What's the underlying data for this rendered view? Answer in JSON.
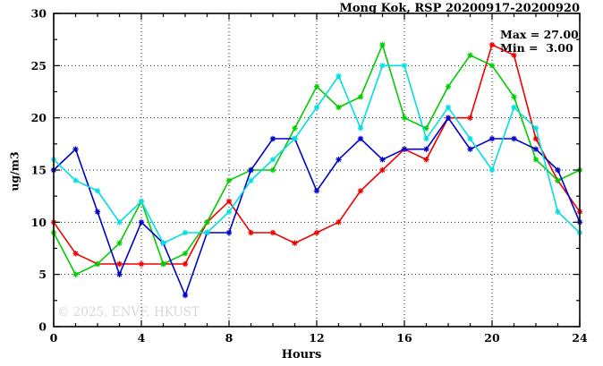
{
  "title": "Mong Kok, RSP 20200917-20200920",
  "annotation": {
    "max_label": "Max = 27.00",
    "min_label": "Min =  3.00"
  },
  "watermark": "© 2025, ENVF, HKUST",
  "chart_data": {
    "type": "line",
    "title": "Mong Kok, RSP 20200917-20200920",
    "xlabel": "Hours",
    "ylabel": "ug/m3",
    "xlim": [
      0,
      24
    ],
    "ylim": [
      0,
      30
    ],
    "x_major_ticks": [
      0,
      4,
      8,
      12,
      16,
      20,
      24
    ],
    "x_minor_step": 1,
    "y_major_ticks": [
      0,
      5,
      10,
      15,
      20,
      25,
      30
    ],
    "y_minor_step": 2.5,
    "grid": true,
    "legend_position": "none",
    "stat_max": 27.0,
    "stat_min": 3.0,
    "x": [
      0,
      1,
      2,
      3,
      4,
      5,
      6,
      7,
      8,
      9,
      10,
      11,
      12,
      13,
      14,
      15,
      16,
      17,
      18,
      19,
      20,
      21,
      22,
      23,
      24
    ],
    "series": [
      {
        "name": "day-1-red",
        "color": "#ee0000",
        "values": [
          10,
          7,
          6,
          6,
          6,
          6,
          6,
          10,
          12,
          9,
          9,
          8,
          9,
          10,
          13,
          15,
          17,
          16,
          20,
          20,
          27,
          26,
          18,
          14,
          11
        ]
      },
      {
        "name": "day-2-green",
        "color": "#00cc00",
        "values": [
          9,
          5,
          6,
          8,
          12,
          6,
          7,
          10,
          14,
          15,
          15,
          19,
          23,
          21,
          22,
          27,
          20,
          19,
          23,
          26,
          25,
          22,
          16,
          14,
          15
        ]
      },
      {
        "name": "day-3-blue",
        "color": "#0000cc",
        "values": [
          15,
          17,
          11,
          5,
          10,
          8,
          3,
          9,
          9,
          15,
          18,
          18,
          13,
          16,
          18,
          16,
          17,
          17,
          20,
          17,
          18,
          18,
          17,
          15,
          10
        ]
      },
      {
        "name": "day-4-cyan",
        "color": "#00dfdf",
        "values": [
          16,
          14,
          13,
          10,
          12,
          8,
          9,
          9,
          11,
          14,
          16,
          18,
          21,
          24,
          19,
          25,
          25,
          18,
          21,
          18,
          15,
          21,
          19,
          11,
          9
        ]
      }
    ],
    "axis_color": "#000000",
    "grid_dash": "1,3"
  }
}
